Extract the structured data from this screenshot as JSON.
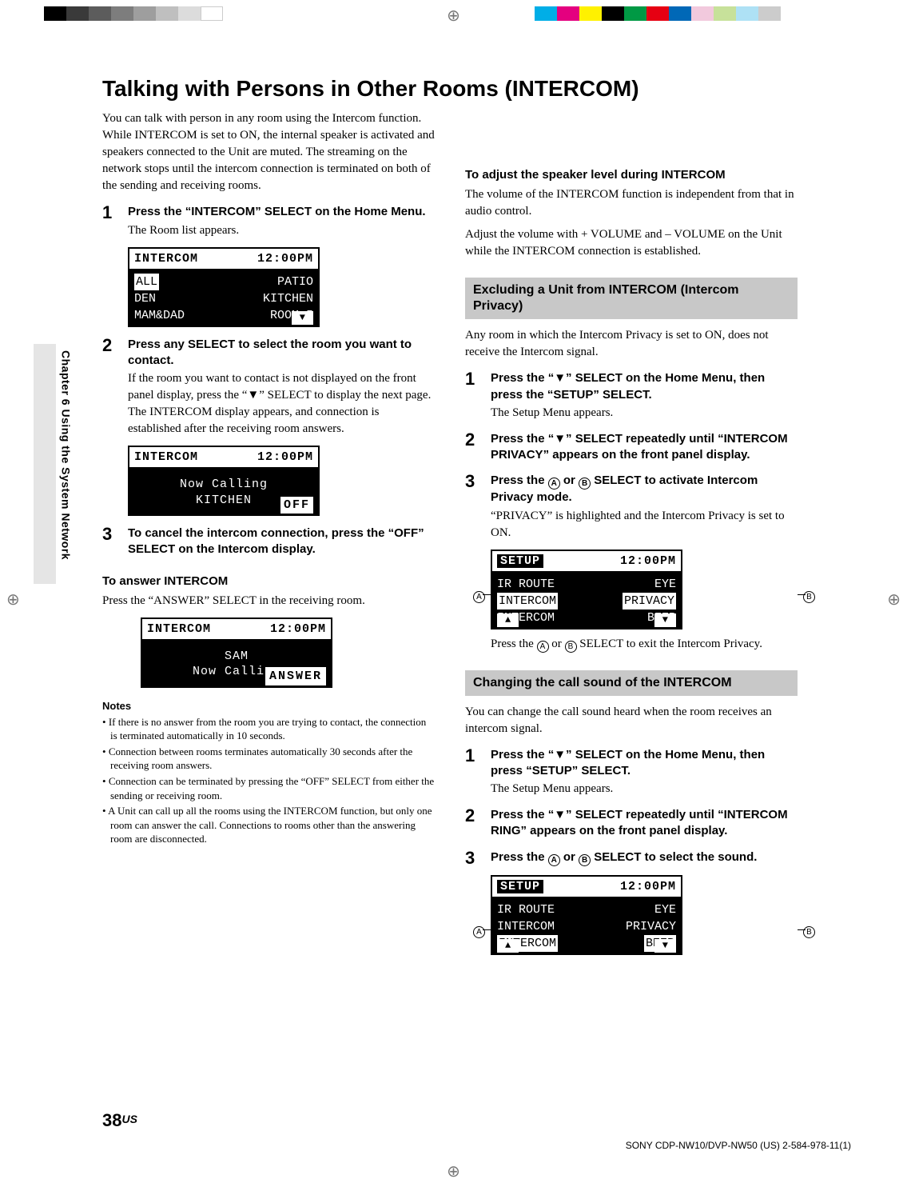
{
  "color_bars_left": [
    "#000000",
    "#3a3a3a",
    "#5c5c5c",
    "#7d7d7d",
    "#9e9e9e",
    "#bfbfbf",
    "#dcdcdc",
    "#ffffff"
  ],
  "color_bars_right": [
    "#00aee7",
    "#e4007f",
    "#fff100",
    "#000000",
    "#009944",
    "#e60012",
    "#0068b7",
    "#f2c9dd",
    "#c7e19a",
    "#aee1f5",
    "#cccccc",
    "#ffffff"
  ],
  "sidebar": "Chapter 6  Using the System Network",
  "title": "Talking with Persons in Other Rooms (INTERCOM)",
  "intro": "You can talk with person in any room using the Intercom function. While INTERCOM is set to ON,  the internal speaker is activated and speakers connected to the Unit are muted. The streaming on the network stops until the intercom connection is terminated on both of the sending and receiving rooms.",
  "left_steps": [
    {
      "n": "1",
      "bold": "Press the “INTERCOM” SELECT on the Home Menu.",
      "plain": "The Room list appears."
    },
    {
      "n": "2",
      "bold": "Press any SELECT to select the room you want to contact.",
      "plain": "If the room you want to contact is not displayed on the front panel display, press the “▼” SELECT to display the next page.\nThe INTERCOM display appears, and connection is established after the receiving room answers."
    },
    {
      "n": "3",
      "bold": "To cancel the intercom connection, press the “OFF” SELECT on the Intercom display.",
      "plain": ""
    }
  ],
  "lcd1": {
    "title": "INTERCOM",
    "time": "12:00PM",
    "rows": [
      [
        "ALL",
        "PATIO"
      ],
      [
        "DEN",
        "KITCHEN"
      ],
      [
        "MAM&DAD",
        "ROOM 5"
      ]
    ],
    "hilite_row": 0,
    "hilite_col": 0,
    "down_arrow": "▼"
  },
  "lcd2": {
    "title": "INTERCOM",
    "time": "12:00PM",
    "center": "Now Calling\nKITCHEN",
    "footer": "OFF"
  },
  "answer_head": "To answer INTERCOM",
  "answer_body": "Press the “ANSWER” SELECT in the receiving room.",
  "lcd3": {
    "title": "INTERCOM",
    "time": "12:00PM",
    "center": "SAM\nNow Calling",
    "footer": "ANSWER"
  },
  "notes_head": "Notes",
  "notes": [
    "If there is no answer from the room you are trying to contact, the connection is terminated automatically in 10 seconds.",
    "Connection between rooms terminates automatically 30 seconds after the receiving room answers.",
    "Connection can be terminated by pressing the “OFF” SELECT from either the sending or receiving room.",
    "A Unit can call up all the rooms using the INTERCOM function, but only one room can answer the call. Connections to rooms other than the answering room are disconnected."
  ],
  "r_head": "To adjust the speaker level during INTERCOM",
  "r_body1": "The volume of the INTERCOM function is independent from that in audio control.",
  "r_body2": "Adjust the volume with  + VOLUME and – VOLUME on the Unit while the INTERCOM connection is established.",
  "bar1": "Excluding a Unit from INTERCOM (Intercom Privacy)",
  "bar1_intro": "Any room in which the Intercom Privacy is set to ON, does not receive the Intercom signal.",
  "r1_steps": [
    {
      "n": "1",
      "bold": "Press the “▼” SELECT on the Home Menu, then press the “SETUP” SELECT.",
      "plain": "The Setup Menu appears."
    },
    {
      "n": "2",
      "bold": "Press the “▼” SELECT repeatedly until “INTERCOM PRIVACY” appears on the front panel display.",
      "plain": ""
    },
    {
      "n": "3",
      "bold": "Press the {A} or {B} SELECT to activate Intercom Privacy mode.",
      "plain": "“PRIVACY” is highlighted and the Intercom Privacy is set to ON."
    }
  ],
  "lcd4": {
    "title": "SETUP",
    "time": "12:00PM",
    "rows": [
      [
        "IR ROUTE",
        "EYE"
      ],
      [
        "INTERCOM",
        "PRIVACY"
      ],
      [
        "INTERCOM",
        "BEEP"
      ]
    ],
    "hilite_row": 1,
    "up": "▲",
    "down": "▼"
  },
  "r1_after": "Press the {A} or {B} SELECT to exit the Intercom Privacy.",
  "bar2": "Changing the call sound of the INTERCOM",
  "bar2_intro": "You can change the call sound heard when the room receives an intercom signal.",
  "r2_steps": [
    {
      "n": "1",
      "bold": "Press the “▼” SELECT on the Home Menu, then press  “SETUP” SELECT.",
      "plain": "The Setup Menu appears."
    },
    {
      "n": "2",
      "bold": "Press the “▼” SELECT repeatedly until “INTERCOM RING” appears on the front panel display.",
      "plain": ""
    },
    {
      "n": "3",
      "bold": "Press the {A} or {B} SELECT to select the sound.",
      "plain": ""
    }
  ],
  "lcd5": {
    "title": "SETUP",
    "time": "12:00PM",
    "rows": [
      [
        "IR ROUTE",
        "EYE"
      ],
      [
        "INTERCOM",
        "PRIVACY"
      ],
      [
        "INTERCOM",
        "BEEP"
      ]
    ],
    "hilite_row": 2,
    "up": "▲",
    "down": "▼"
  },
  "page_num": "38",
  "page_suffix": "US",
  "footer": "SONY CDP-NW10/DVP-NW50 (US) 2-584-978-11(1)",
  "labels": {
    "A": "A",
    "B": "B"
  }
}
